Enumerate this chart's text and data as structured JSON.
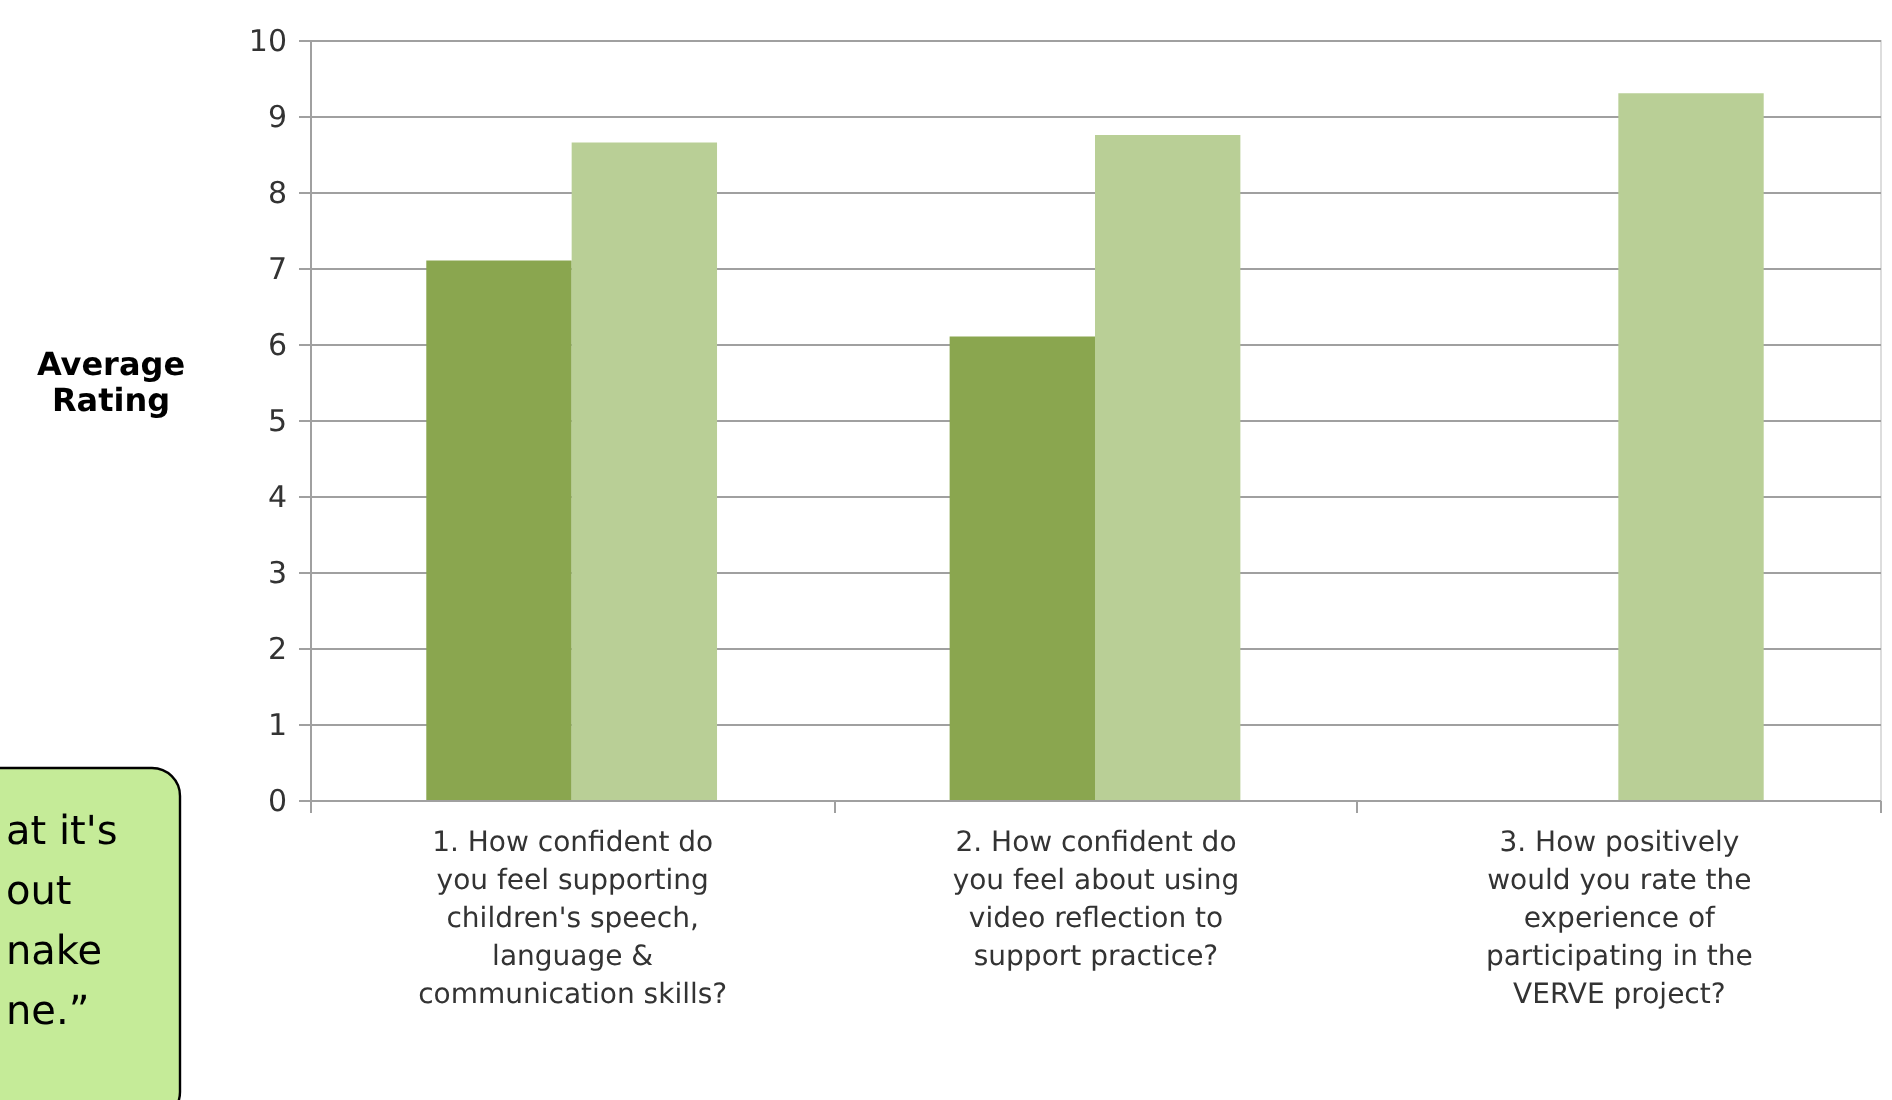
{
  "chart_data": {
    "type": "bar",
    "ylabel": "Average Rating",
    "categories": [
      "1. How confident do you feel supporting children's speech, language & communication skills?",
      "2. How confident do you feel about using video reflection to support practice?",
      "3. How positively would you rate the experience of participating in the VERVE project?"
    ],
    "series": [
      {
        "color": "#8aa64f",
        "values": [
          7.1,
          6.1,
          null
        ]
      },
      {
        "color": "#b9cf96",
        "values": [
          8.65,
          8.75,
          9.3
        ]
      }
    ],
    "ylim": [
      0,
      10
    ],
    "yticks": [
      0,
      1,
      2,
      3,
      4,
      5,
      6,
      7,
      8,
      9,
      10
    ],
    "grid": "y",
    "legend": false,
    "annotations": [
      "at it's\nout\nnake\nne.”"
    ]
  }
}
